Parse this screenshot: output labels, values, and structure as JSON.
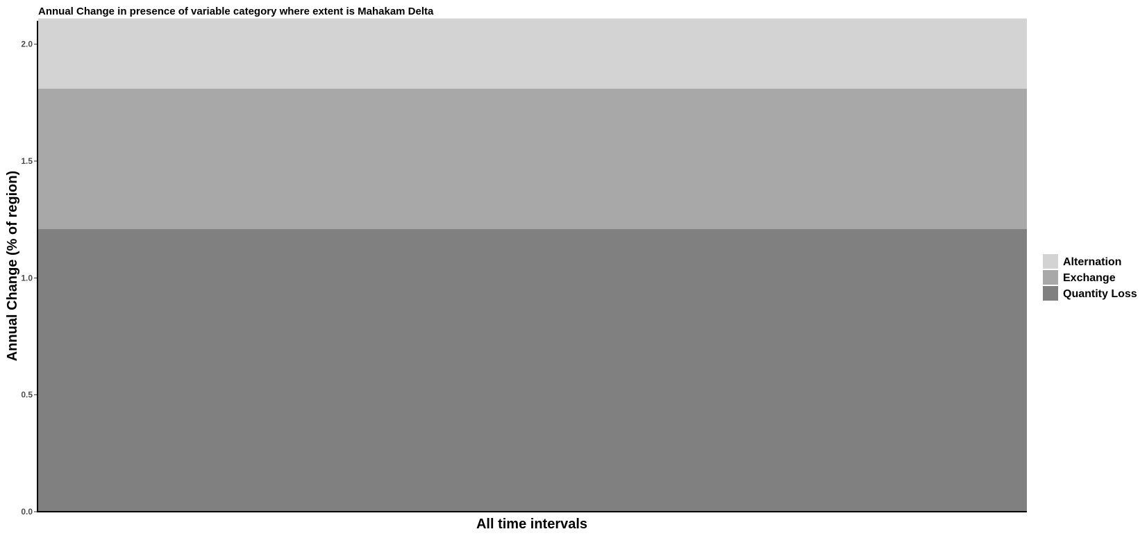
{
  "chart_data": {
    "type": "bar",
    "stacked": true,
    "title": "Annual Change in presence of variable category where extent is Mahakam Delta",
    "xlabel": "All time intervals",
    "ylabel": "Annual Change (% of region)",
    "ylim": [
      0,
      2.1
    ],
    "yticks": [
      "0.0",
      "0.5",
      "1.0",
      "1.5",
      "2.0"
    ],
    "grid": false,
    "legend_position": "right",
    "categories": [
      ""
    ],
    "series": [
      {
        "name": "Quantity Loss",
        "values": [
          1.21
        ],
        "color": "#808080"
      },
      {
        "name": "Exchange",
        "values": [
          0.6
        ],
        "color": "#a8a8a8"
      },
      {
        "name": "Alternation",
        "values": [
          0.3
        ],
        "color": "#d3d3d3"
      }
    ],
    "legend_order": [
      "Alternation",
      "Exchange",
      "Quantity Loss"
    ]
  }
}
